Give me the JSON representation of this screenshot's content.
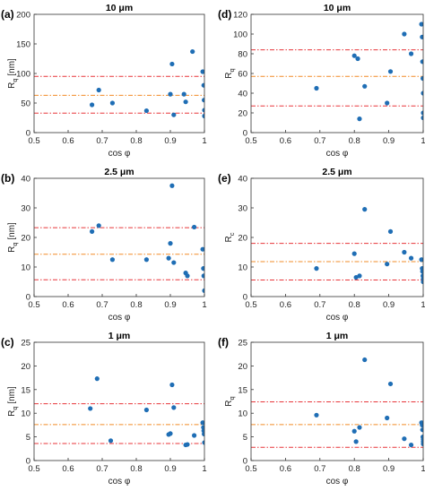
{
  "colors": {
    "marker": "#1f6eb5",
    "band_upper": "#e8363a",
    "band_mid": "#f28c28",
    "band_lower": "#e8363a",
    "axis": "#333333"
  },
  "chart_data": [
    {
      "type": "scatter",
      "panel_label": "(a)",
      "title": "10 μm",
      "xlabel": "cos φ",
      "ylabel": "R",
      "ylabel_sub": "q",
      "ylabel_unit": " [nm]",
      "xlim": [
        0.5,
        1
      ],
      "ylim": [
        0,
        200
      ],
      "xticks": [
        "0.5",
        "0.6",
        "0.7",
        "0.8",
        "0.9",
        "1"
      ],
      "yticks": [
        "0",
        "50",
        "100",
        "150",
        "200"
      ],
      "hlines": [
        95,
        63,
        33
      ],
      "x": [
        0.67,
        0.69,
        0.73,
        0.83,
        0.9,
        0.905,
        0.91,
        0.94,
        0.945,
        0.965,
        0.995,
        0.998,
        0.999,
        1.0,
        1.0
      ],
      "y": [
        47,
        72,
        50,
        37,
        65,
        116,
        30,
        65,
        52,
        137,
        103,
        80,
        55,
        38,
        28
      ]
    },
    {
      "type": "scatter",
      "panel_label": "(d)",
      "title": "10 μm",
      "xlabel": "cos φ",
      "ylabel": "R",
      "ylabel_sub": "q",
      "ylabel_unit": "",
      "xlim": [
        0.5,
        1
      ],
      "ylim": [
        0,
        120
      ],
      "xticks": [
        "0.5",
        "0.6",
        "0.7",
        "0.8",
        "0.9",
        "1"
      ],
      "yticks": [
        "0",
        "20",
        "40",
        "60",
        "80",
        "100",
        "120"
      ],
      "hlines": [
        84,
        57,
        27
      ],
      "x": [
        0.69,
        0.8,
        0.81,
        0.815,
        0.83,
        0.895,
        0.905,
        0.945,
        0.965,
        0.995,
        0.997,
        0.998,
        0.999,
        1.0,
        1.0,
        1.0
      ],
      "y": [
        45,
        78,
        75,
        14,
        47,
        30,
        62,
        100,
        80,
        110,
        97,
        72,
        55,
        40,
        20,
        15
      ]
    },
    {
      "type": "scatter",
      "panel_label": "(b)",
      "title": "2.5 μm",
      "xlabel": "cos φ",
      "ylabel": "R",
      "ylabel_sub": "q",
      "ylabel_unit": " [nm]",
      "xlim": [
        0.5,
        1
      ],
      "ylim": [
        0,
        40
      ],
      "xticks": [
        "0.5",
        "0.6",
        "0.7",
        "0.8",
        "0.9",
        "1"
      ],
      "yticks": [
        "0",
        "10",
        "20",
        "30",
        "40"
      ],
      "hlines": [
        23.3,
        14.3,
        5.7
      ],
      "x": [
        0.67,
        0.69,
        0.73,
        0.83,
        0.895,
        0.9,
        0.905,
        0.91,
        0.945,
        0.95,
        0.97,
        0.995,
        0.997,
        0.998,
        1.0
      ],
      "y": [
        22,
        24,
        12.5,
        12.5,
        13,
        18,
        37.5,
        11.5,
        8,
        7,
        23.5,
        16,
        9.5,
        7,
        2
      ]
    },
    {
      "type": "scatter",
      "panel_label": "(e)",
      "title": "2.5 μm",
      "xlabel": "cos φ",
      "ylabel": "R",
      "ylabel_sub": "c",
      "ylabel_unit": "",
      "xlim": [
        0.5,
        1
      ],
      "ylim": [
        0,
        40
      ],
      "xticks": [
        "0.5",
        "0.6",
        "0.7",
        "0.8",
        "0.9",
        "1"
      ],
      "yticks": [
        "0",
        "10",
        "20",
        "30",
        "40"
      ],
      "hlines": [
        18,
        11.8,
        5.6
      ],
      "x": [
        0.69,
        0.8,
        0.805,
        0.815,
        0.83,
        0.895,
        0.905,
        0.945,
        0.965,
        0.995,
        0.997,
        0.998,
        0.999,
        1.0,
        1.0
      ],
      "y": [
        9.5,
        14.5,
        6.5,
        7,
        29.5,
        11,
        22,
        15,
        13,
        12.5,
        9.5,
        8.5,
        7,
        6,
        5
      ]
    },
    {
      "type": "scatter",
      "panel_label": "(c)",
      "title": "1 μm",
      "xlabel": "cos φ",
      "ylabel": "R",
      "ylabel_sub": "q",
      "ylabel_unit": " [nm]",
      "xlim": [
        0.5,
        1
      ],
      "ylim": [
        0,
        25
      ],
      "xticks": [
        "0.5",
        "0.6",
        "0.7",
        "0.8",
        "0.9",
        "1"
      ],
      "yticks": [
        "0",
        "5",
        "10",
        "15",
        "20",
        "25"
      ],
      "hlines": [
        12,
        7.6,
        3.6
      ],
      "x": [
        0.665,
        0.685,
        0.725,
        0.83,
        0.895,
        0.9,
        0.905,
        0.91,
        0.945,
        0.95,
        0.97,
        0.995,
        0.997,
        0.998,
        0.999,
        1.0
      ],
      "y": [
        11,
        17.3,
        4.2,
        10.7,
        5.5,
        5.7,
        16,
        11.2,
        3.3,
        3.4,
        5.3,
        8,
        7,
        6.3,
        5.6,
        3.8
      ]
    },
    {
      "type": "scatter",
      "panel_label": "(f)",
      "title": "1 μm",
      "xlabel": "cos φ",
      "ylabel": "R",
      "ylabel_sub": "q",
      "ylabel_unit": "",
      "xlim": [
        0.5,
        1
      ],
      "ylim": [
        0,
        25
      ],
      "xticks": [
        "0.5",
        "0.6",
        "0.7",
        "0.8",
        "0.9",
        "1"
      ],
      "yticks": [
        "0",
        "5",
        "10",
        "15",
        "20",
        "25"
      ],
      "hlines": [
        12.4,
        7.6,
        2.8
      ],
      "x": [
        0.69,
        0.8,
        0.805,
        0.815,
        0.83,
        0.895,
        0.905,
        0.945,
        0.965,
        0.995,
        0.997,
        0.998,
        0.999,
        1.0,
        1.0,
        1.0
      ],
      "y": [
        9.6,
        6.2,
        4,
        7,
        21.3,
        9,
        16.2,
        4.6,
        3.3,
        8,
        7.5,
        6.5,
        5,
        4.5,
        4,
        3.5
      ]
    }
  ]
}
